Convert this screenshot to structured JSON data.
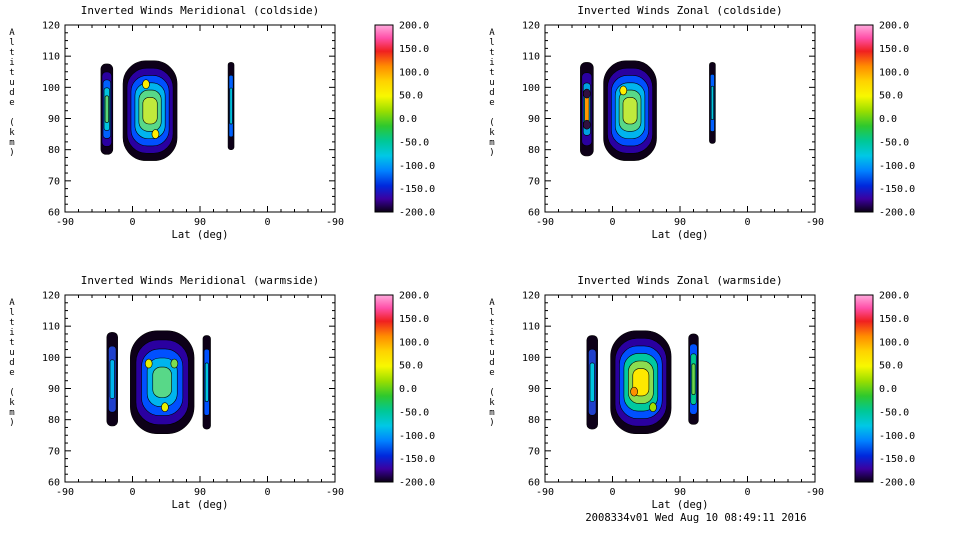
{
  "page": {
    "background": "#ffffff",
    "text_color": "#000000",
    "timestamp": "2008334v01 Wed Aug 10 08:49:11 2016"
  },
  "chart_data": {
    "type": "contour",
    "layout": "2x2-grid",
    "shared_axes": {
      "xlabel": "Lat (deg)",
      "ylabel": "Altitude (km)",
      "xticks": [
        "-90",
        "0",
        "90",
        "0",
        "-90"
      ],
      "yticks": [
        "120",
        "110",
        "100",
        "90",
        "80",
        "70",
        "60"
      ],
      "ylim": [
        60,
        120
      ],
      "grid": false
    },
    "colorbar": {
      "labels": [
        "200.0",
        "150.0",
        "100.0",
        "50.0",
        "0.0",
        "-50.0",
        "-100.0",
        "-150.0",
        "-200.0"
      ],
      "range": [
        -200,
        200
      ],
      "position": "right",
      "gradient": [
        {
          "pos": 0.0,
          "color": "#ffaadd"
        },
        {
          "pos": 0.07,
          "color": "#ff4fa7"
        },
        {
          "pos": 0.14,
          "color": "#f02020"
        },
        {
          "pos": 0.22,
          "color": "#ff8c00"
        },
        {
          "pos": 0.3,
          "color": "#ffd200"
        },
        {
          "pos": 0.38,
          "color": "#f8f800"
        },
        {
          "pos": 0.46,
          "color": "#9ade00"
        },
        {
          "pos": 0.54,
          "color": "#2ec82e"
        },
        {
          "pos": 0.62,
          "color": "#00c896"
        },
        {
          "pos": 0.7,
          "color": "#00c8e6"
        },
        {
          "pos": 0.78,
          "color": "#0082ff"
        },
        {
          "pos": 0.86,
          "color": "#0028dc"
        },
        {
          "pos": 0.93,
          "color": "#3c00a0"
        },
        {
          "pos": 1.0,
          "color": "#0a0014"
        }
      ]
    },
    "plots": [
      {
        "title": "Inverted Winds Meridional (coldside)",
        "blobs": [
          {
            "x": 0.155,
            "dx": 0.022,
            "alt": 93,
            "dalt": 14.5,
            "layers": [
              "#0d0018",
              "#2a00a0",
              "#0060ff",
              "#00c4e0",
              "#58d878"
            ]
          },
          {
            "x": 0.315,
            "dx": 0.1,
            "alt": 92.5,
            "dalt": 16,
            "layers": [
              "#0d0018",
              "#2a00a0",
              "#0050ff",
              "#00b4ee",
              "#58d888",
              "#c0ea3c"
            ],
            "spots": [
              {
                "x": 0.3,
                "alt": 101,
                "color": "#ffee00"
              },
              {
                "x": 0.335,
                "alt": 85,
                "color": "#ffee00"
              }
            ]
          },
          {
            "x": 0.615,
            "dx": 0.011,
            "alt": 94,
            "dalt": 14,
            "layers": [
              "#0d0018",
              "#0060ff",
              "#00c4e0"
            ]
          }
        ]
      },
      {
        "title": "Inverted Winds Zonal (coldside)",
        "blobs": [
          {
            "x": 0.155,
            "dx": 0.024,
            "alt": 93,
            "dalt": 15,
            "layers": [
              "#0d0018",
              "#2a00a0",
              "#00a0e0",
              "#ff9900"
            ],
            "spots": [
              {
                "x": 0.155,
                "alt": 98,
                "color": "#301040"
              },
              {
                "x": 0.155,
                "alt": 88,
                "color": "#301040"
              }
            ]
          },
          {
            "x": 0.315,
            "dx": 0.098,
            "alt": 92.5,
            "dalt": 16,
            "layers": [
              "#0d0018",
              "#2a00a0",
              "#0050ff",
              "#00b4ee",
              "#58d888",
              "#c0ea3c"
            ],
            "spots": [
              {
                "x": 0.29,
                "alt": 99,
                "color": "#ffee00"
              }
            ]
          },
          {
            "x": 0.62,
            "dx": 0.011,
            "alt": 95,
            "dalt": 13,
            "layers": [
              "#0d0018",
              "#0060ff",
              "#00c4e0"
            ]
          }
        ]
      },
      {
        "title": "Inverted Winds Meridional (warmside)",
        "blobs": [
          {
            "x": 0.175,
            "dx": 0.02,
            "alt": 93,
            "dalt": 15,
            "layers": [
              "#0d0018",
              "#2040cc",
              "#00b4ee"
            ]
          },
          {
            "x": 0.36,
            "dx": 0.118,
            "alt": 92,
            "dalt": 16.5,
            "layers": [
              "#0d0018",
              "#2a00a0",
              "#0050ff",
              "#00b4ee",
              "#58d888"
            ],
            "spots": [
              {
                "x": 0.31,
                "alt": 98,
                "color": "#e6f000"
              },
              {
                "x": 0.405,
                "alt": 98,
                "color": "#7ddc50"
              },
              {
                "x": 0.37,
                "alt": 84,
                "color": "#e6f000"
              }
            ]
          },
          {
            "x": 0.525,
            "dx": 0.014,
            "alt": 92,
            "dalt": 15,
            "layers": [
              "#0d0018",
              "#0050ff",
              "#00c4e0"
            ]
          }
        ]
      },
      {
        "title": "Inverted Winds Zonal (warmside)",
        "blobs": [
          {
            "x": 0.175,
            "dx": 0.02,
            "alt": 92,
            "dalt": 15,
            "layers": [
              "#0d0018",
              "#2040cc",
              "#00c4e0"
            ]
          },
          {
            "x": 0.355,
            "dx": 0.112,
            "alt": 92,
            "dalt": 16.5,
            "layers": [
              "#0d0018",
              "#2a00a0",
              "#0050ff",
              "#00c8a0",
              "#8cdc50",
              "#ffe800"
            ],
            "spots": [
              {
                "x": 0.33,
                "alt": 89,
                "color": "#ff9000"
              },
              {
                "x": 0.4,
                "alt": 84,
                "color": "#a0e000"
              }
            ]
          },
          {
            "x": 0.55,
            "dx": 0.018,
            "alt": 93,
            "dalt": 14.5,
            "layers": [
              "#0d0018",
              "#0050ff",
              "#00c890",
              "#6cd84c"
            ]
          }
        ]
      }
    ]
  }
}
